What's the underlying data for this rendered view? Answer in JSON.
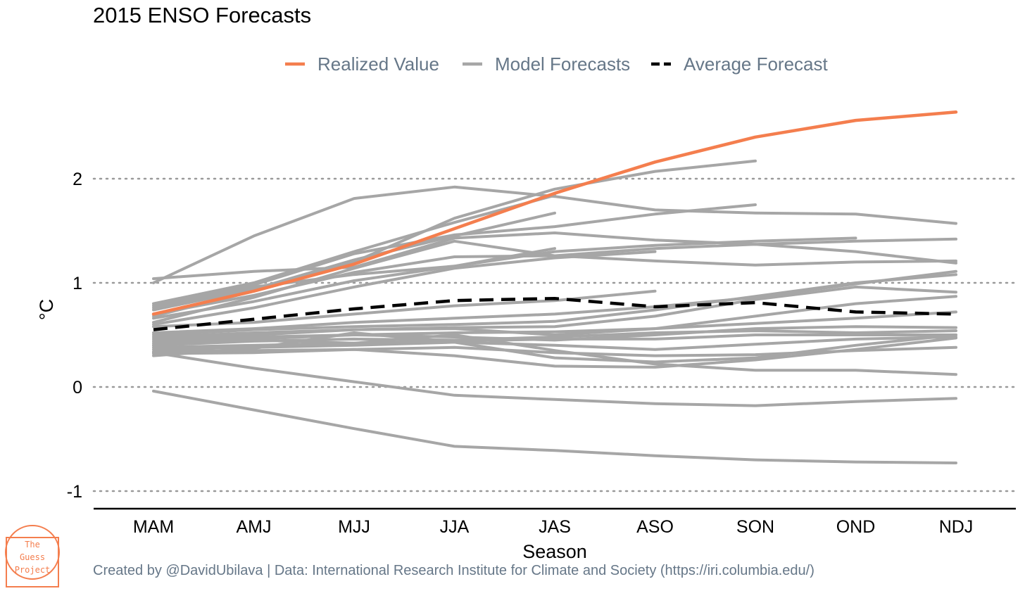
{
  "title": "2015 ENSO Forecasts",
  "caption": "Created by @DavidUbilava | Data: International Research Institute for Climate and Society (https://iri.columbia.edu/)",
  "logo": {
    "text": [
      "The",
      "Guess",
      "Project"
    ],
    "color": "#f47e4e"
  },
  "colors": {
    "realized": "#f47e4e",
    "model": "#a6a6a6",
    "average": "#000000",
    "legend_text": "#667788"
  },
  "legend": [
    {
      "label": "Realized Value",
      "key": "realized",
      "style": "solid"
    },
    {
      "label": "Model Forecasts",
      "key": "model",
      "style": "solid"
    },
    {
      "label": "Average Forecast",
      "key": "average",
      "style": "dashed"
    }
  ],
  "chart_data": {
    "type": "line",
    "title": "2015 ENSO Forecasts",
    "xlabel": "Season",
    "ylabel": "°C",
    "categories": [
      "MAM",
      "AMJ",
      "MJJ",
      "JJA",
      "JAS",
      "ASO",
      "SON",
      "OND",
      "NDJ"
    ],
    "yticks": [
      -1,
      0,
      1,
      2
    ],
    "ylim": [
      -1.15,
      2.85
    ],
    "grid": "horizontal dotted",
    "legend_position": "top",
    "realized": [
      0.7,
      0.92,
      1.18,
      1.52,
      1.86,
      2.16,
      2.4,
      2.56,
      2.64
    ],
    "average": [
      0.55,
      0.65,
      0.75,
      0.83,
      0.85,
      0.77,
      0.81,
      0.72,
      0.7
    ],
    "models": [
      [
        0.68,
        0.92,
        1.2,
        1.62,
        1.9,
        2.07,
        2.17
      ],
      [
        1.0,
        1.45,
        1.81,
        1.92,
        1.83,
        1.7,
        1.67,
        1.66,
        1.57
      ],
      [
        0.8,
        1.0,
        1.3,
        1.58,
        1.84
      ],
      [
        0.78,
        0.98,
        1.28,
        1.46,
        1.54,
        1.66,
        1.75
      ],
      [
        0.74,
        0.94,
        1.22,
        1.45,
        1.67
      ],
      [
        1.04,
        1.11,
        1.15,
        1.43,
        1.48,
        1.41,
        1.37,
        1.4,
        1.42
      ],
      [
        0.62,
        0.86,
        1.14,
        1.4,
        1.26,
        1.21,
        1.17,
        1.2,
        1.21
      ],
      [
        0.66,
        0.82,
        1.02,
        1.16,
        1.3,
        1.36,
        1.4,
        1.43
      ],
      [
        0.7,
        0.88,
        1.1,
        1.25,
        1.26,
        1.33,
        1.37,
        1.3,
        1.19
      ],
      [
        0.76,
        0.96,
        1.08,
        1.16,
        1.33
      ],
      [
        0.6,
        0.76,
        0.96,
        1.14,
        1.24,
        1.3
      ],
      [
        0.58,
        0.62,
        0.7,
        0.78,
        0.83,
        0.92
      ],
      [
        0.52,
        0.56,
        0.62,
        0.66,
        0.7,
        0.77,
        0.86,
        0.99,
        1.11
      ],
      [
        0.5,
        0.55,
        0.58,
        0.6,
        0.63,
        0.74,
        0.87,
        1.0,
        1.08
      ],
      [
        0.48,
        0.52,
        0.55,
        0.57,
        0.58,
        0.68,
        0.84,
        0.96,
        0.91
      ],
      [
        0.46,
        0.5,
        0.55,
        0.56,
        0.5,
        0.56,
        0.68,
        0.8,
        0.87
      ],
      [
        0.44,
        0.48,
        0.5,
        0.52,
        0.53,
        0.56,
        0.61,
        0.66,
        0.72
      ],
      [
        0.42,
        0.46,
        0.5,
        0.48,
        0.45,
        0.5,
        0.56,
        0.58,
        0.57
      ],
      [
        0.4,
        0.44,
        0.46,
        0.45,
        0.48,
        0.52,
        0.54,
        0.52,
        0.54
      ],
      [
        0.38,
        0.4,
        0.42,
        0.44,
        0.46,
        0.46,
        0.5,
        0.5,
        0.5
      ],
      [
        0.36,
        0.38,
        0.4,
        0.43,
        0.4,
        0.36,
        0.41,
        0.46,
        0.48
      ],
      [
        0.34,
        0.35,
        0.36,
        0.38,
        0.33,
        0.3,
        0.31,
        0.35,
        0.38
      ],
      [
        0.32,
        0.33,
        0.36,
        0.3,
        0.2,
        0.19,
        0.26,
        0.36,
        0.47
      ],
      [
        0.4,
        0.45,
        0.42,
        0.5,
        0.35,
        0.22,
        0.16,
        0.16,
        0.12
      ],
      [
        0.3,
        0.37,
        0.52,
        0.43,
        0.28,
        0.24,
        0.28,
        0.4,
        0.5
      ],
      [
        0.33,
        0.18,
        0.05,
        -0.08,
        -0.12,
        -0.16,
        -0.18,
        -0.14,
        -0.11
      ],
      [
        -0.04,
        -0.22,
        -0.4,
        -0.57,
        -0.61,
        -0.66,
        -0.7,
        -0.72,
        -0.73
      ]
    ]
  }
}
